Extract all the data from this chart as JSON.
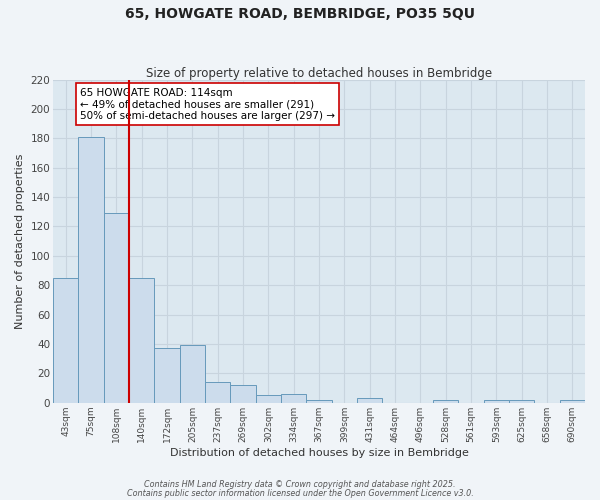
{
  "title": "65, HOWGATE ROAD, BEMBRIDGE, PO35 5QU",
  "subtitle": "Size of property relative to detached houses in Bembridge",
  "xlabel": "Distribution of detached houses by size in Bembridge",
  "ylabel": "Number of detached properties",
  "bin_labels": [
    "43sqm",
    "75sqm",
    "108sqm",
    "140sqm",
    "172sqm",
    "205sqm",
    "237sqm",
    "269sqm",
    "302sqm",
    "334sqm",
    "367sqm",
    "399sqm",
    "431sqm",
    "464sqm",
    "496sqm",
    "528sqm",
    "561sqm",
    "593sqm",
    "625sqm",
    "658sqm",
    "690sqm"
  ],
  "bar_values": [
    85,
    181,
    129,
    85,
    37,
    39,
    14,
    12,
    5,
    6,
    2,
    0,
    3,
    0,
    0,
    2,
    0,
    2,
    2,
    0,
    2
  ],
  "bar_color": "#ccdcec",
  "bar_edge_color": "#6699bb",
  "grid_color": "#c8d4de",
  "background_color": "#dce8f0",
  "vline_color": "#cc0000",
  "vline_x_index": 2.5,
  "annotation_line1": "65 HOWGATE ROAD: 114sqm",
  "annotation_line2": "← 49% of detached houses are smaller (291)",
  "annotation_line3": "50% of semi-detached houses are larger (297) →",
  "ylim": [
    0,
    220
  ],
  "yticks": [
    0,
    20,
    40,
    60,
    80,
    100,
    120,
    140,
    160,
    180,
    200,
    220
  ],
  "footer_line1": "Contains HM Land Registry data © Crown copyright and database right 2025.",
  "footer_line2": "Contains public sector information licensed under the Open Government Licence v3.0.",
  "fig_bg": "#f0f4f8"
}
